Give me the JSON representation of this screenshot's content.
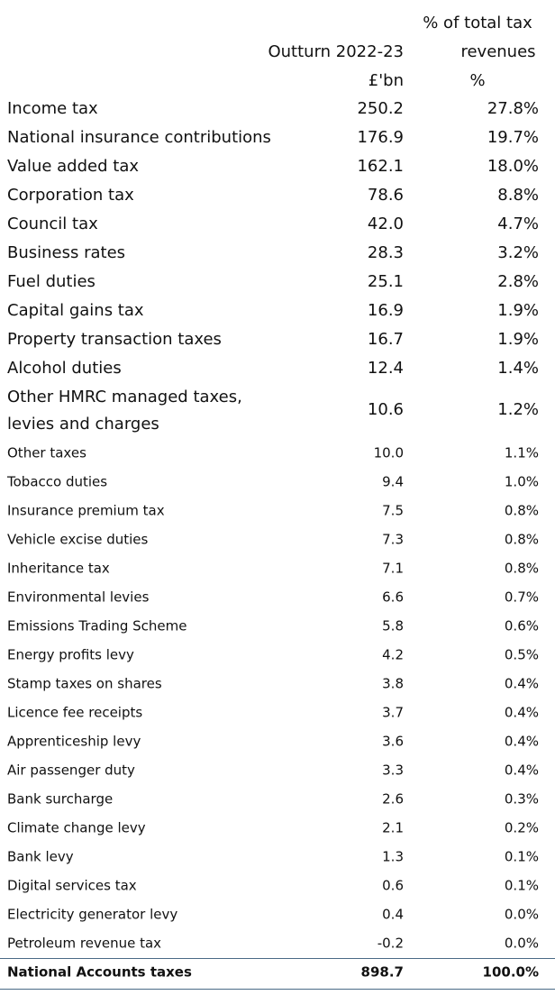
{
  "header": {
    "value_column": [
      "Outturn 2022-23",
      "£'bn"
    ],
    "share_column": [
      "% of total tax",
      "revenues",
      "%"
    ]
  },
  "rows": [
    {
      "label": "Income tax",
      "value": "250.2",
      "share": "27.8%"
    },
    {
      "label": "National insurance contributions",
      "value": "176.9",
      "share": "19.7%"
    },
    {
      "label": "Value added tax",
      "value": "162.1",
      "share": "18.0%"
    },
    {
      "label": "Corporation tax",
      "value": "78.6",
      "share": "8.8%"
    },
    {
      "label": "Council tax",
      "value": "42.0",
      "share": "4.7%"
    },
    {
      "label": "Business rates",
      "value": "28.3",
      "share": "3.2%"
    },
    {
      "label": "Fuel duties",
      "value": "25.1",
      "share": "2.8%"
    },
    {
      "label": "Capital gains tax",
      "value": "16.9",
      "share": "1.9%"
    },
    {
      "label": "Property transaction taxes",
      "value": "16.7",
      "share": "1.9%"
    },
    {
      "label": "Alcohol duties",
      "value": "12.4",
      "share": "1.4%"
    },
    {
      "label": [
        "Other HMRC managed taxes,",
        "levies and charges"
      ],
      "value": "10.6",
      "share": "1.2%"
    },
    {
      "label": "Other taxes",
      "value": "10.0",
      "share": "1.1%"
    },
    {
      "label": "Tobacco duties",
      "value": "9.4",
      "share": "1.0%"
    },
    {
      "label": "Insurance premium tax",
      "value": "7.5",
      "share": "0.8%"
    },
    {
      "label": "Vehicle excise duties",
      "value": "7.3",
      "share": "0.8%"
    },
    {
      "label": "Inheritance tax",
      "value": "7.1",
      "share": "0.8%"
    },
    {
      "label": "Environmental levies",
      "value": "6.6",
      "share": "0.7%"
    },
    {
      "label": "Emissions Trading Scheme",
      "value": "5.8",
      "share": "0.6%"
    },
    {
      "label": "Energy profits levy",
      "value": "4.2",
      "share": "0.5%"
    },
    {
      "label": "Stamp taxes on shares",
      "value": "3.8",
      "share": "0.4%"
    },
    {
      "label": "Licence fee receipts",
      "value": "3.7",
      "share": "0.4%"
    },
    {
      "label": "Apprenticeship levy",
      "value": "3.6",
      "share": "0.4%"
    },
    {
      "label": "Air passenger duty",
      "value": "3.3",
      "share": "0.4%"
    },
    {
      "label": "Bank surcharge",
      "value": "2.6",
      "share": "0.3%"
    },
    {
      "label": "Climate change levy",
      "value": "2.1",
      "share": "0.2%"
    },
    {
      "label": "Bank levy",
      "value": "1.3",
      "share": "0.1%"
    },
    {
      "label": "Digital services tax",
      "value": "0.6",
      "share": "0.1%"
    },
    {
      "label": "Electricity generator levy",
      "value": "0.4",
      "share": "0.0%"
    },
    {
      "label": "Petroleum revenue tax",
      "value": "-0.2",
      "share": "0.0%"
    }
  ],
  "total": {
    "label": "National Accounts taxes",
    "value": "898.7",
    "share": "100.0%"
  }
}
